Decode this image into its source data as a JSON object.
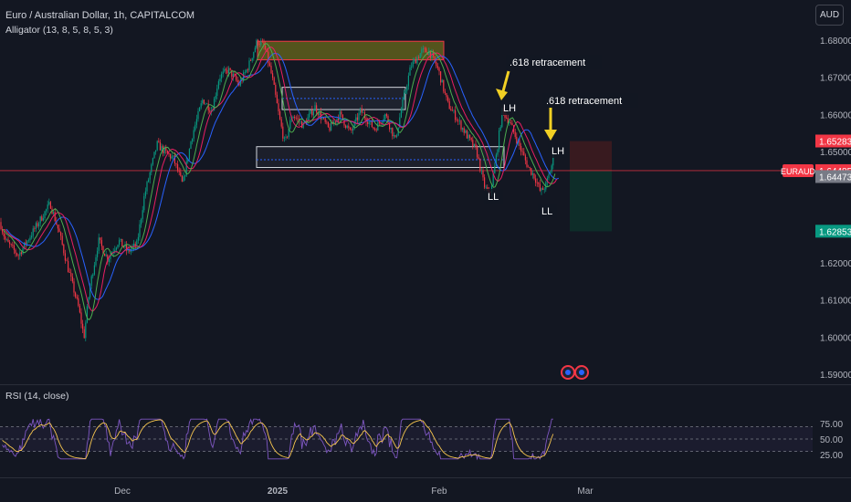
{
  "header": {
    "symbol_title": "Euro / Australian Dollar, 1h, CAPITALCOM",
    "indicator": "Alligator (13, 8, 5, 8, 5, 3)",
    "currency_button": "AUD"
  },
  "chart_data": [
    {
      "type": "candlestick",
      "symbol": "EURAUD",
      "timeframe": "1h",
      "x_ticks": [
        "Dec",
        "2025",
        "Feb",
        "Mar"
      ],
      "y_ticks": [
        "1.68000",
        "1.67000",
        "1.66000",
        "1.65000",
        "1.62000",
        "1.61000",
        "1.60000",
        "1.59000"
      ],
      "ylim": [
        1.589,
        1.6835
      ],
      "price_series": {
        "approx_points": [
          [
            0,
            1.631
          ],
          [
            6,
            1.626
          ],
          [
            20,
            1.622
          ],
          [
            40,
            1.63
          ],
          [
            55,
            1.636
          ],
          [
            65,
            1.628
          ],
          [
            75,
            1.618
          ],
          [
            86,
            1.608
          ],
          [
            92,
            1.6
          ],
          [
            98,
            1.613
          ],
          [
            108,
            1.626
          ],
          [
            118,
            1.621
          ],
          [
            130,
            1.626
          ],
          [
            140,
            1.623
          ],
          [
            150,
            1.625
          ],
          [
            158,
            1.638
          ],
          [
            165,
            1.645
          ],
          [
            172,
            1.652
          ],
          [
            180,
            1.65
          ],
          [
            190,
            1.648
          ],
          [
            200,
            1.641
          ],
          [
            210,
            1.654
          ],
          [
            222,
            1.664
          ],
          [
            232,
            1.661
          ],
          [
            240,
            1.67
          ],
          [
            250,
            1.672
          ],
          [
            262,
            1.668
          ],
          [
            272,
            1.673
          ],
          [
            282,
            1.68
          ],
          [
            290,
            1.678
          ],
          [
            298,
            1.67
          ],
          [
            306,
            1.659
          ],
          [
            312,
            1.652
          ],
          [
            320,
            1.66
          ],
          [
            332,
            1.657
          ],
          [
            345,
            1.662
          ],
          [
            360,
            1.656
          ],
          [
            372,
            1.66
          ],
          [
            384,
            1.655
          ],
          [
            395,
            1.661
          ],
          [
            410,
            1.656
          ],
          [
            422,
            1.66
          ],
          [
            433,
            1.653
          ],
          [
            440,
            1.662
          ],
          [
            450,
            1.673
          ],
          [
            462,
            1.677
          ],
          [
            470,
            1.677
          ],
          [
            480,
            1.672
          ],
          [
            490,
            1.663
          ],
          [
            500,
            1.659
          ],
          [
            512,
            1.654
          ],
          [
            522,
            1.65
          ],
          [
            530,
            1.641
          ],
          [
            536,
            1.638
          ],
          [
            542,
            1.646
          ],
          [
            550,
            1.661
          ],
          [
            558,
            1.658
          ],
          [
            568,
            1.652
          ],
          [
            578,
            1.646
          ],
          [
            586,
            1.643
          ],
          [
            592,
            1.639
          ],
          [
            598,
            1.641
          ],
          [
            604,
            1.646
          ],
          [
            607,
            1.65
          ]
        ]
      },
      "annotations": {
        "zones": [
          {
            "name": "resistance-zone",
            "from": 1.6747,
            "to": 1.6797,
            "color": "#7f7f1a"
          },
          {
            "name": "mid-range-zone",
            "from": 1.6613,
            "to": 1.6673
          },
          {
            "name": "support-zone",
            "from": 1.6457,
            "to": 1.6513
          },
          {
            "name": "short-stop-zone",
            "from": 1.6448,
            "to": 1.6528,
            "color": "#ef5350"
          },
          {
            "name": "short-target-zone",
            "from": 1.6285,
            "to": 1.6448,
            "color": "#089981"
          }
        ],
        "current_price_line": 1.64485,
        "swing_labels": [
          "LH",
          "LL",
          "LH",
          "LL"
        ],
        "callouts": [
          ".618 retracement",
          ".618 retracement"
        ]
      },
      "price_tags": [
        {
          "label": "",
          "value": "1.65283",
          "color": "#f23645"
        },
        {
          "label": "EURAUD",
          "value": "1.64485",
          "color": "#f23645"
        },
        {
          "label": "",
          "value": "1.64473",
          "color": "#787b86"
        },
        {
          "label": "",
          "value": "1.62853",
          "color": "#089981"
        }
      ]
    },
    {
      "type": "line",
      "name": "RSI (14, close)",
      "y_ticks": [
        "75.00",
        "50.00",
        "25.00"
      ],
      "levels": [
        70,
        50,
        30
      ],
      "ylim": [
        20,
        80
      ]
    }
  ]
}
